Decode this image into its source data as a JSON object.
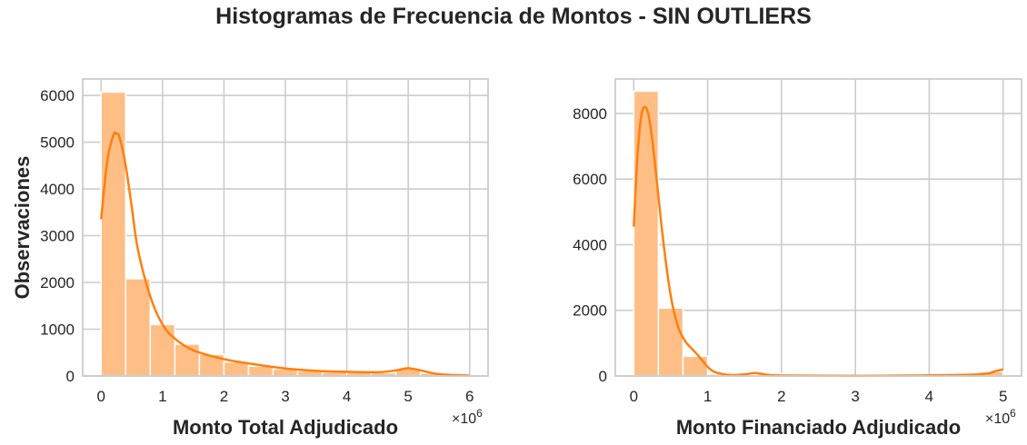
{
  "title": "Histogramas de Frecuencia de Montos - SIN OUTLIERS",
  "colors": {
    "bar": "#ffbe86",
    "kde": "#ff7f0e",
    "grid": "#cccccc",
    "frame": "#cccccc"
  },
  "chart_data": [
    {
      "type": "bar",
      "subtype": "histogram_with_kde",
      "xlabel": "Monto Total Adjudicado",
      "ylabel": "Observaciones",
      "x_multiplier": "×10",
      "x_multiplier_exp": "6",
      "xlim": [
        -0.3,
        6.3
      ],
      "ylim": [
        0,
        6350
      ],
      "xticks": [
        0,
        1,
        2,
        3,
        4,
        5,
        6
      ],
      "yticks": [
        0,
        1000,
        2000,
        3000,
        4000,
        5000,
        6000
      ],
      "grid": true,
      "bin_edges": [
        0,
        0.4,
        0.8,
        1.2,
        1.6,
        2.0,
        2.4,
        2.8,
        3.2,
        3.6,
        4.0,
        4.4,
        4.8,
        5.2,
        5.6,
        6.0
      ],
      "values": [
        6070,
        2080,
        1100,
        680,
        460,
        300,
        210,
        150,
        110,
        85,
        75,
        70,
        160,
        60,
        20
      ],
      "kde": {
        "x": [
          0,
          0.1,
          0.2,
          0.25,
          0.3,
          0.4,
          0.5,
          0.6,
          0.8,
          1.0,
          1.2,
          1.5,
          2.0,
          2.5,
          3.0,
          3.5,
          4.0,
          4.5,
          4.8,
          5.0,
          5.2,
          5.5,
          6.0
        ],
        "y": [
          3350,
          4600,
          5150,
          5180,
          5100,
          4500,
          3600,
          2700,
          1700,
          1100,
          800,
          550,
          360,
          250,
          160,
          110,
          90,
          80,
          120,
          165,
          120,
          40,
          10
        ]
      }
    },
    {
      "type": "bar",
      "subtype": "histogram_with_kde",
      "xlabel": "Monto Financiado Adjudicado",
      "ylabel": "",
      "x_multiplier": "×10",
      "x_multiplier_exp": "6",
      "xlim": [
        -0.25,
        5.25
      ],
      "ylim": [
        0,
        9050
      ],
      "xticks": [
        0,
        1,
        2,
        3,
        4,
        5
      ],
      "yticks": [
        0,
        2000,
        4000,
        6000,
        8000
      ],
      "grid": true,
      "bin_edges": [
        0,
        0.333,
        0.667,
        1.0,
        1.333,
        1.667,
        2.0,
        2.333,
        2.667,
        3.0,
        3.333,
        3.667,
        4.0,
        4.333,
        4.667,
        5.0
      ],
      "values": [
        8680,
        2070,
        600,
        60,
        20,
        70,
        15,
        10,
        8,
        8,
        8,
        10,
        15,
        30,
        130
      ],
      "kde": {
        "x": [
          0,
          0.05,
          0.1,
          0.15,
          0.2,
          0.25,
          0.3,
          0.4,
          0.5,
          0.6,
          0.7,
          0.8,
          0.9,
          1.0,
          1.1,
          1.3,
          1.5,
          1.65,
          1.8,
          2.0,
          3.0,
          4.0,
          4.6,
          4.8,
          4.9,
          5.0
        ],
        "y": [
          4550,
          6700,
          7900,
          8200,
          7950,
          7200,
          6200,
          4100,
          2450,
          1500,
          1050,
          800,
          550,
          280,
          120,
          30,
          50,
          90,
          40,
          15,
          5,
          20,
          40,
          80,
          150,
          200
        ]
      }
    }
  ]
}
